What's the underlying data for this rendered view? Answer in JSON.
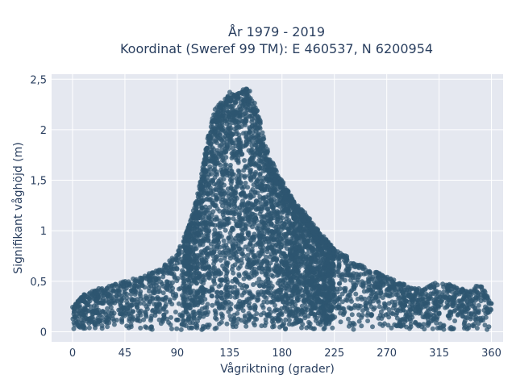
{
  "chart_data": {
    "type": "scatter",
    "title_line1": "År 1979 - 2019",
    "title_line2": "Koordinat (Sweref 99 TM): E 460537, N 6200954",
    "xlabel": "Vågriktning (grader)",
    "ylabel": "Signifikant våghöjd (m)",
    "xlim": [
      -18,
      370
    ],
    "ylim": [
      -0.1,
      2.55
    ],
    "x_ticks": [
      0,
      45,
      90,
      135,
      180,
      225,
      270,
      315,
      360
    ],
    "x_tick_labels": [
      "0",
      "45",
      "90",
      "135",
      "180",
      "225",
      "270",
      "315",
      "360"
    ],
    "y_ticks": [
      0,
      0.5,
      1,
      1.5,
      2,
      2.5
    ],
    "y_tick_labels": [
      "0",
      "0,5",
      "1",
      "1,5",
      "2",
      "2,5"
    ],
    "grid": true,
    "marker_color": "#2e5570",
    "background_color": "#e5e8f0",
    "envelope": {
      "x": [
        0,
        10,
        20,
        30,
        45,
        60,
        75,
        90,
        100,
        105,
        110,
        115,
        120,
        125,
        130,
        135,
        140,
        145,
        150,
        155,
        160,
        165,
        170,
        180,
        190,
        200,
        210,
        225,
        240,
        255,
        270,
        285,
        300,
        315,
        330,
        340,
        350,
        360
      ],
      "y_max": [
        0.25,
        0.37,
        0.42,
        0.45,
        0.5,
        0.55,
        0.62,
        0.78,
        1.05,
        1.25,
        1.5,
        1.85,
        2.12,
        2.28,
        2.3,
        2.38,
        2.35,
        2.38,
        2.44,
        2.32,
        2.15,
        1.9,
        1.72,
        1.5,
        1.3,
        1.18,
        1.02,
        0.82,
        0.72,
        0.62,
        0.55,
        0.47,
        0.42,
        0.5,
        0.45,
        0.4,
        0.48,
        0.3
      ]
    }
  }
}
